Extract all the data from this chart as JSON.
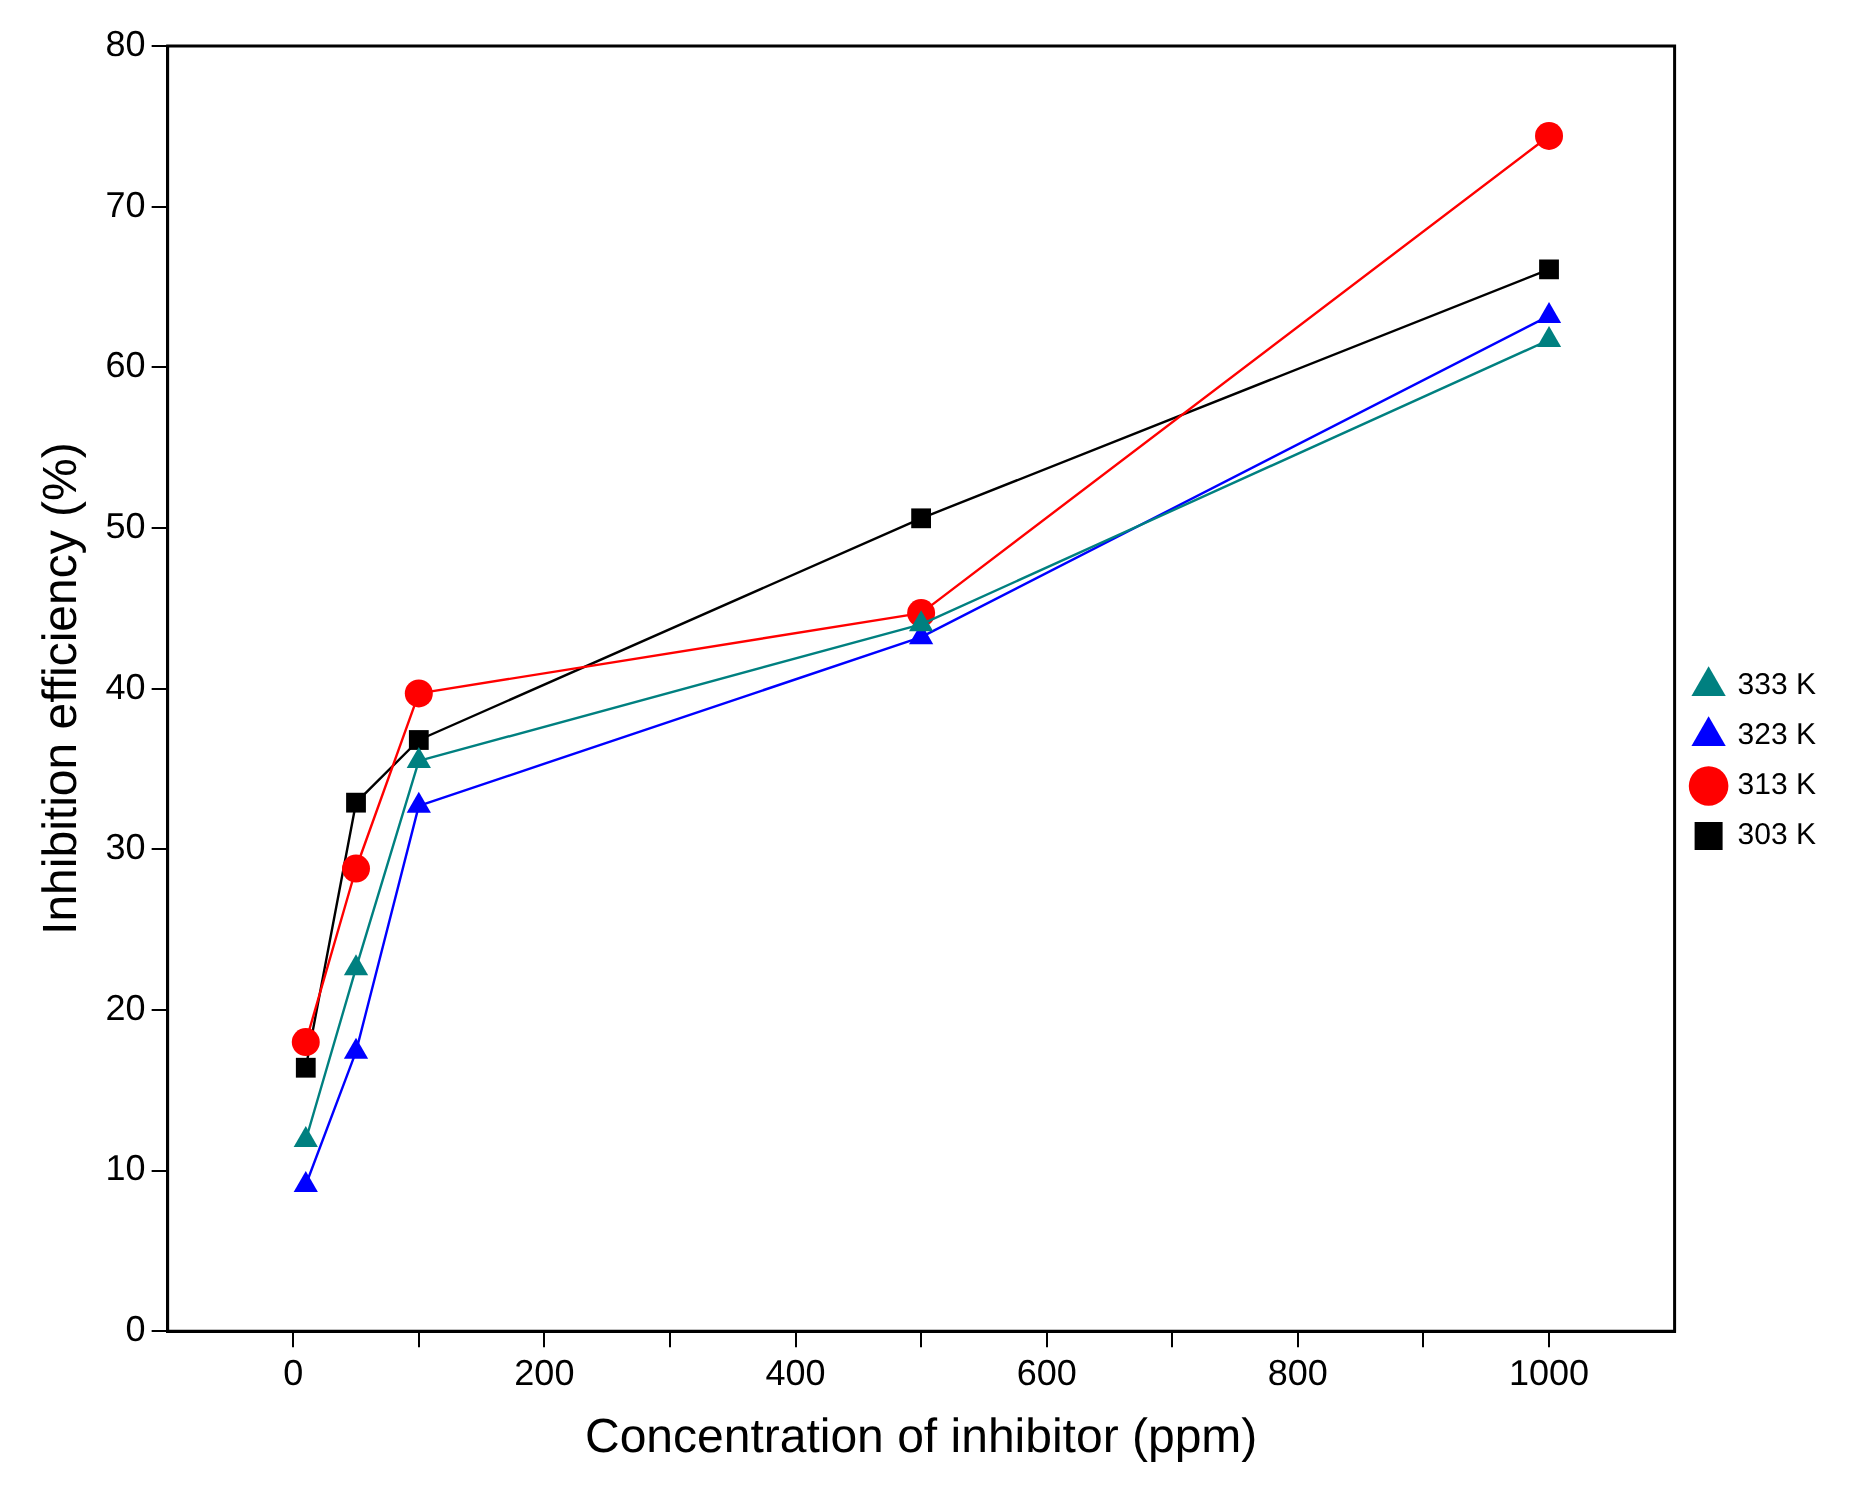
{
  "chart_data": {
    "type": "line",
    "xlabel": "Concentration of inhibitor (ppm)",
    "ylabel": "Inhibition efficiency (%)",
    "x": [
      10,
      50,
      100,
      500,
      1000
    ],
    "series": [
      {
        "name": "303 K",
        "color": "#000000",
        "marker": "square",
        "values": [
          16.4,
          32.9,
          36.8,
          50.6,
          66.1
        ]
      },
      {
        "name": "313 K",
        "color": "#ff0000",
        "marker": "circle",
        "values": [
          18.0,
          28.8,
          39.7,
          44.7,
          74.4
        ]
      },
      {
        "name": "323 K",
        "color": "#0000ff",
        "marker": "triangle",
        "values": [
          9.1,
          17.4,
          32.7,
          43.2,
          63.2
        ]
      },
      {
        "name": "333 K",
        "color": "#008080",
        "marker": "triangle",
        "values": [
          11.9,
          22.6,
          35.5,
          44.0,
          61.7
        ]
      }
    ],
    "xlim": [
      -100,
      1100
    ],
    "xticks": [
      0,
      {
        "value": 100,
        "label": null
      },
      200,
      {
        "value": 300,
        "label": null
      },
      400,
      {
        "value": 500,
        "label": null
      },
      600,
      {
        "value": 700,
        "label": null
      },
      800,
      {
        "value": 900,
        "label": null
      },
      1000
    ],
    "ylim": [
      0,
      80
    ],
    "yticks": [
      0,
      10,
      20,
      30,
      40,
      50,
      60,
      70,
      80
    ],
    "grid": false,
    "legend": "right",
    "line_style": "solid"
  }
}
